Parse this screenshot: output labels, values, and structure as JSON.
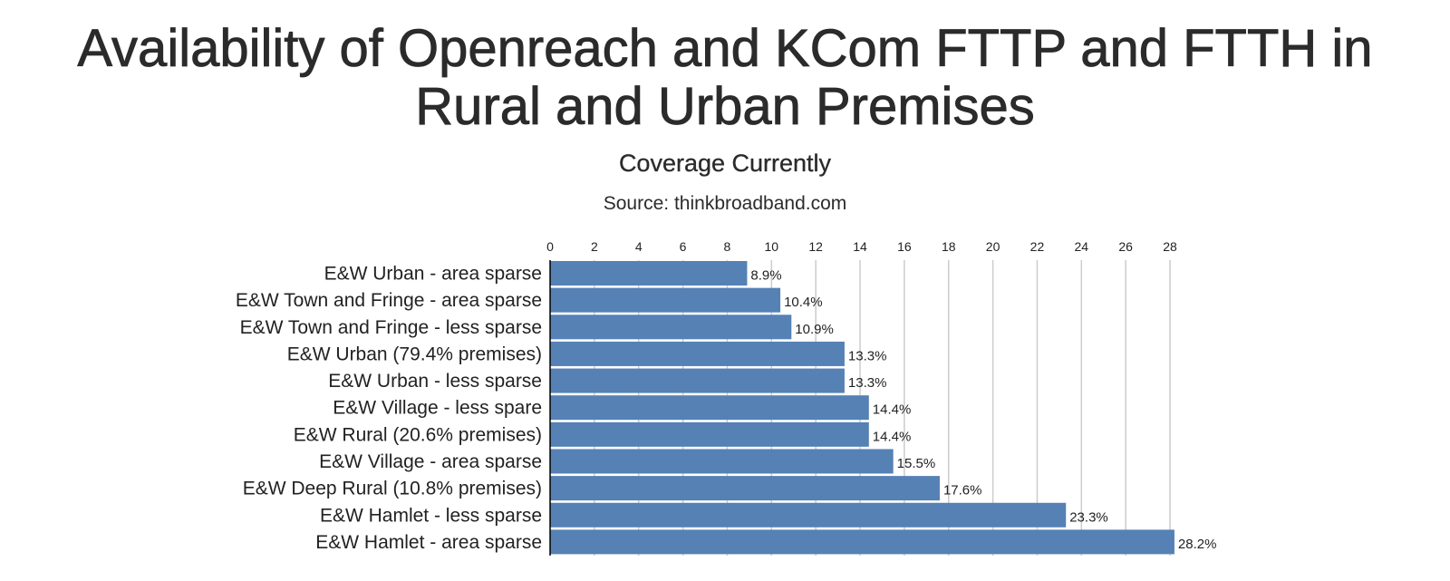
{
  "header": {
    "title_line1": "Availability of Openreach and KCom FTTP and FTTH in",
    "title_line2": "Rural and Urban Premises",
    "subtitle": "Coverage Currently",
    "source": "Source: thinkbroadband.com"
  },
  "colors": {
    "bar": "#5581b5",
    "grid": "#cccccc",
    "axis": "#000000"
  },
  "chart_data": {
    "type": "bar",
    "orientation": "horizontal",
    "title": "Availability of Openreach and KCom FTTP and FTTH in Rural and Urban Premises",
    "subtitle": "Coverage Currently",
    "xlabel": "",
    "ylabel": "",
    "xlim": [
      0,
      29
    ],
    "xticks": [
      0,
      2,
      4,
      6,
      8,
      10,
      12,
      14,
      16,
      18,
      20,
      22,
      24,
      26,
      28
    ],
    "grid": true,
    "categories": [
      "E&W Urban - area sparse",
      "E&W Town and Fringe - area sparse",
      "E&W Town and Fringe - less sparse",
      "E&W Urban (79.4% premises)",
      "E&W Urban - less sparse",
      "E&W Village - less spare",
      "E&W Rural (20.6% premises)",
      "E&W Village - area sparse",
      "E&W Deep Rural (10.8% premises)",
      "E&W Hamlet - less sparse",
      "E&W Hamlet - area sparse"
    ],
    "values": [
      8.9,
      10.4,
      10.9,
      13.3,
      13.3,
      14.4,
      14.4,
      15.5,
      17.6,
      23.3,
      28.2
    ],
    "data_labels": [
      "8.9%",
      "10.4%",
      "10.9%",
      "13.3%",
      "13.3%",
      "14.4%",
      "14.4%",
      "15.5%",
      "17.6%",
      "23.3%",
      "28.2%"
    ]
  }
}
